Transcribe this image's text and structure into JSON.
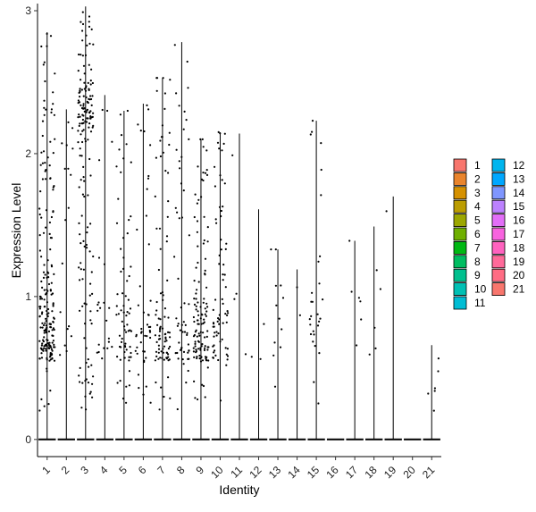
{
  "chart_data": {
    "type": "violin",
    "xlabel": "Identity",
    "ylabel": "Expression Level",
    "ylim": [
      -0.12,
      3.05
    ],
    "yticks": [
      0,
      1,
      2,
      3
    ],
    "grid": false,
    "legend_position": "right",
    "categories": [
      "1",
      "2",
      "3",
      "4",
      "5",
      "6",
      "7",
      "8",
      "9",
      "10",
      "11",
      "12",
      "13",
      "14",
      "15",
      "16",
      "17",
      "18",
      "19",
      "20",
      "21"
    ],
    "series": [
      {
        "name": "1",
        "max": 2.85,
        "color": "#F8766D"
      },
      {
        "name": "2",
        "max": 2.31,
        "color": "#E9842C"
      },
      {
        "name": "3",
        "max": 3.03,
        "color": "#D69100"
      },
      {
        "name": "4",
        "max": 2.41,
        "color": "#BC9D00"
      },
      {
        "name": "5",
        "max": 2.3,
        "color": "#9CA700"
      },
      {
        "name": "6",
        "max": 2.35,
        "color": "#6FB000"
      },
      {
        "name": "7",
        "max": 2.53,
        "color": "#00B813"
      },
      {
        "name": "8",
        "max": 2.78,
        "color": "#00BD61"
      },
      {
        "name": "9",
        "max": 2.1,
        "color": "#00C08E"
      },
      {
        "name": "10",
        "max": 2.15,
        "color": "#00C0B4"
      },
      {
        "name": "11",
        "max": 2.14,
        "color": "#00BDD4"
      },
      {
        "name": "12",
        "max": 1.61,
        "color": "#00B5EE"
      },
      {
        "name": "13",
        "max": 1.33,
        "color": "#00A7FF"
      },
      {
        "name": "14",
        "max": 1.19,
        "color": "#7F96FF"
      },
      {
        "name": "15",
        "max": 2.23,
        "color": "#BC81FF"
      },
      {
        "name": "16",
        "max": 0.0,
        "color": "#E26EF7"
      },
      {
        "name": "17",
        "max": 1.39,
        "color": "#F863DF"
      },
      {
        "name": "18",
        "max": 1.49,
        "color": "#FF62BF"
      },
      {
        "name": "19",
        "max": 1.7,
        "color": "#FF6A9A"
      },
      {
        "name": "20",
        "max": 0.0,
        "color": "#FF6C84"
      },
      {
        "name": "21",
        "max": 0.66,
        "color": "#F8766D"
      }
    ],
    "point_density": [
      200,
      18,
      170,
      22,
      70,
      45,
      90,
      55,
      120,
      70,
      4,
      3,
      12,
      2,
      28,
      0,
      6,
      5,
      1,
      0,
      6
    ],
    "note": "Each cluster has most cells at 0 expression with a jittered set of nonzero points"
  }
}
